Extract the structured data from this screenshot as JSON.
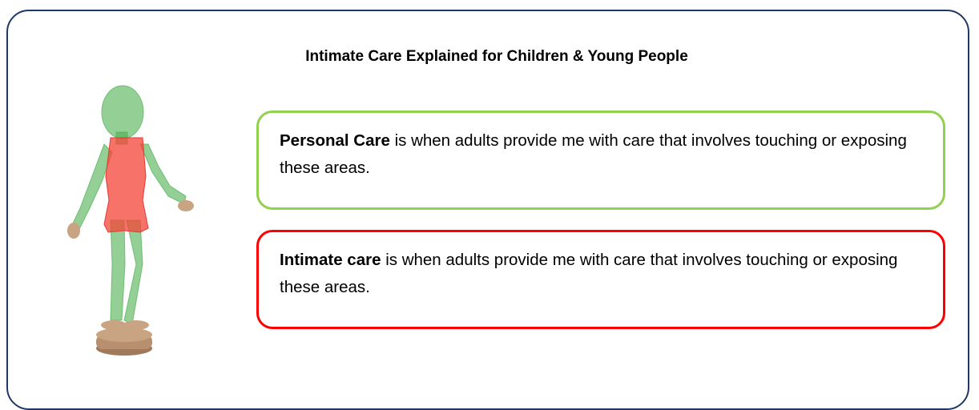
{
  "title": "Intimate Care Explained for Children & Young People",
  "boxes": [
    {
      "term": "Personal Care",
      "text": "is when adults provide me with care that involves touching or exposing these areas."
    },
    {
      "term": "Intimate care",
      "text": "is when adults provide me with care that involves touching or exposing these areas."
    }
  ]
}
